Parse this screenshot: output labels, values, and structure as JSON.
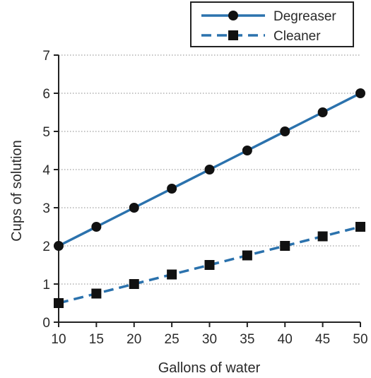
{
  "chart_data": {
    "type": "line",
    "xlabel": "Gallons of water",
    "ylabel": "Cups of solution",
    "x": [
      10,
      15,
      20,
      25,
      30,
      35,
      40,
      45,
      50
    ],
    "xlim": [
      10,
      50
    ],
    "ylim": [
      0,
      7
    ],
    "xticks": [
      "10",
      "15",
      "20",
      "25",
      "30",
      "35",
      "40",
      "45",
      "50"
    ],
    "yticks": [
      "0",
      "1",
      "2",
      "3",
      "4",
      "5",
      "6",
      "7"
    ],
    "grid": "horizontal dotted",
    "legend_position": "top-right",
    "color": "#2b72ad",
    "series": [
      {
        "name": "Degreaser",
        "values": [
          2,
          2.5,
          3,
          3.5,
          4,
          4.5,
          5,
          5.5,
          6
        ],
        "marker": "circle",
        "line": "solid"
      },
      {
        "name": "Cleaner",
        "values": [
          0.5,
          0.75,
          1,
          1.25,
          1.5,
          1.75,
          2,
          2.25,
          2.5
        ],
        "marker": "square",
        "line": "dashed"
      }
    ]
  }
}
